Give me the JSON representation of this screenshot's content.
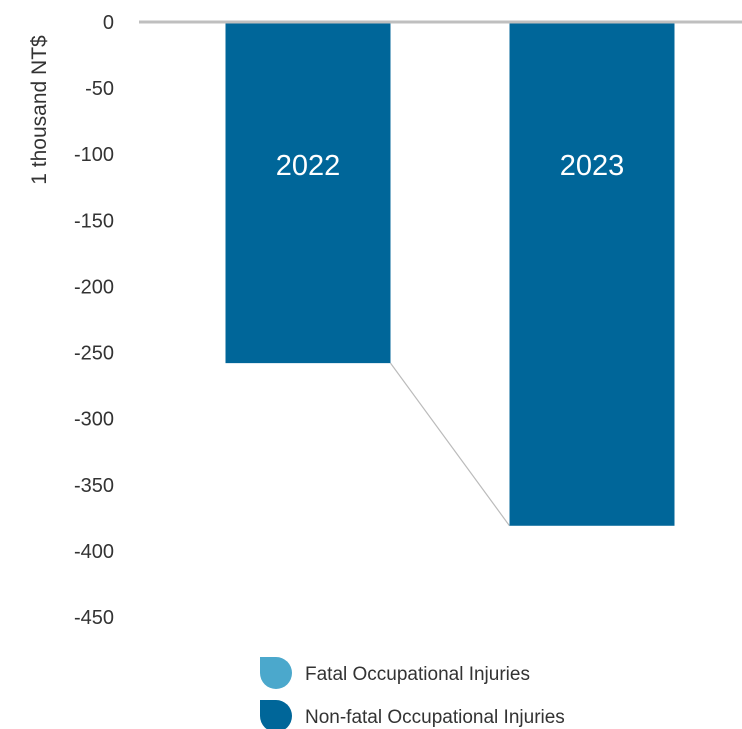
{
  "chart_data": {
    "type": "bar",
    "ylabel": "1 thousand NT$",
    "ylim": [
      -450,
      0
    ],
    "yticks": [
      0,
      -50,
      -100,
      -150,
      -200,
      -250,
      -300,
      -350,
      -400,
      -450
    ],
    "categories": [
      "2022",
      "2023"
    ],
    "series": [
      {
        "name": "Fatal Occupational Injuries",
        "values": [
          0,
          0
        ],
        "color": "#4BA8CC"
      },
      {
        "name": "Non-fatal Occupational Injuries",
        "values": [
          -258,
          -381
        ],
        "color": "#006699"
      }
    ],
    "bar_labels": [
      "2022",
      "2023"
    ],
    "connector_line": true,
    "grid": false,
    "legend_position": "bottom-center"
  }
}
